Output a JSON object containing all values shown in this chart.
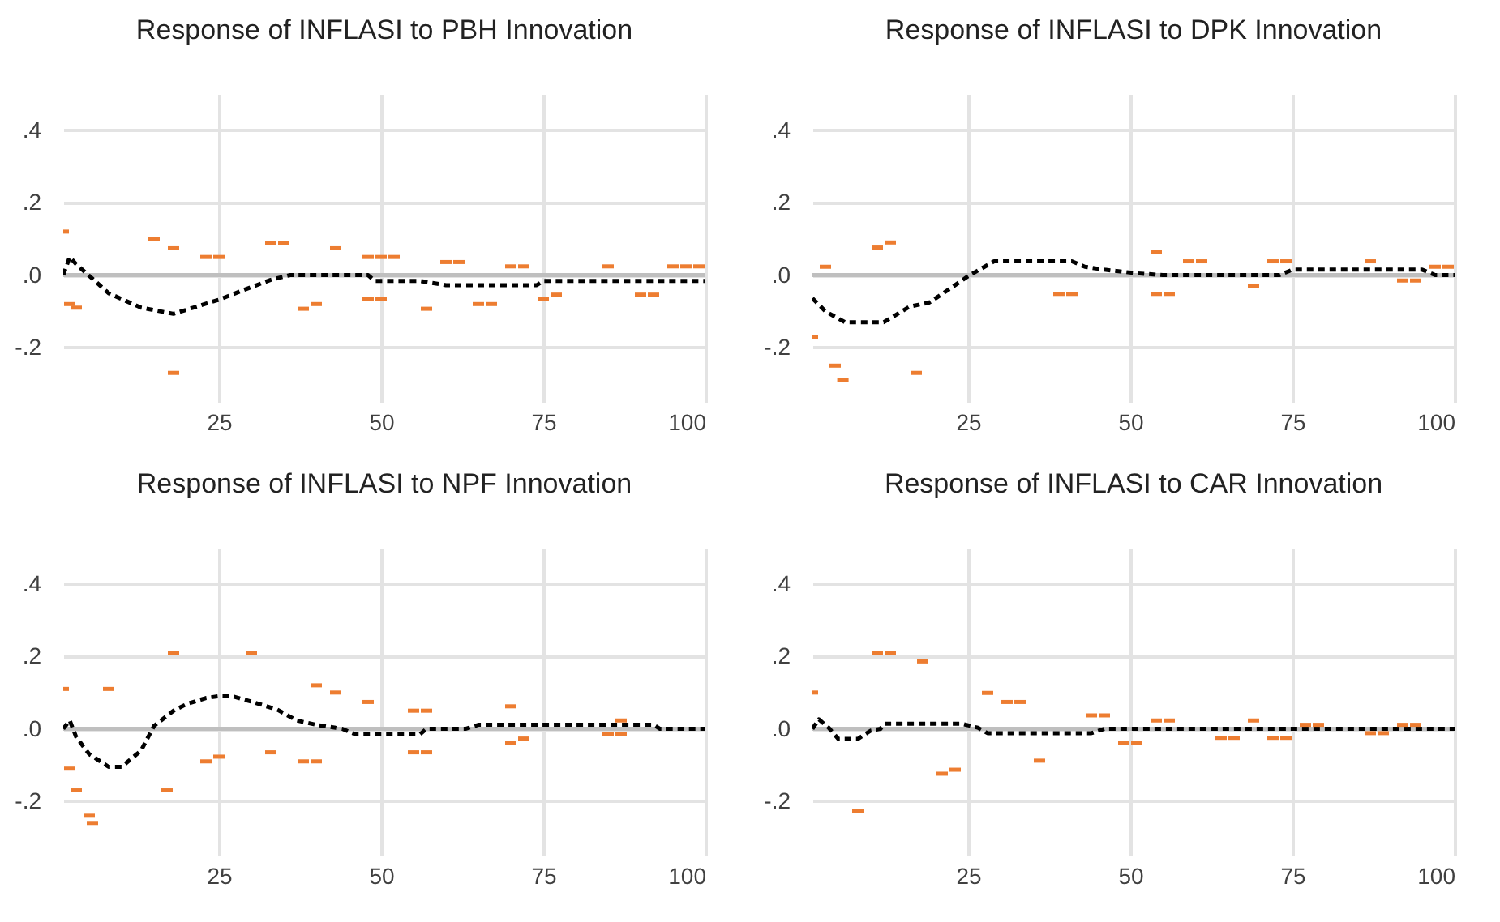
{
  "chart_data": [
    {
      "type": "line",
      "title": "Response of INFLASI to PBH Innovation",
      "xlim": [
        1,
        100
      ],
      "xticks": [
        25,
        50,
        75,
        100
      ],
      "ylim": [
        -0.35,
        0.5
      ],
      "yticks": [
        {
          "value": -0.2,
          "label": "-.2"
        },
        {
          "value": 0,
          "label": ".0"
        },
        {
          "value": 0.2,
          "label": ".2"
        },
        {
          "value": 0.4,
          "label": ".4"
        }
      ],
      "grid": true,
      "line_style": "dashed",
      "ref_lines": [
        {
          "axis": "y",
          "value": 0,
          "color": "#bfbfbf"
        }
      ],
      "series": [
        {
          "type": "line",
          "color": "#000000",
          "x": [
            1,
            2,
            3,
            8,
            13,
            18,
            21,
            25,
            29,
            33,
            36,
            40,
            45,
            48,
            49,
            56,
            60,
            65,
            70,
            74,
            75,
            80,
            90,
            100
          ],
          "values": [
            0,
            0.05,
            0.03,
            -0.05,
            -0.09,
            -0.107,
            -0.09,
            -0.068,
            -0.04,
            -0.013,
            0,
            0,
            0,
            0,
            -0.016,
            -0.016,
            -0.028,
            -0.028,
            -0.028,
            -0.028,
            -0.016,
            -0.016,
            -0.016,
            -0.016
          ]
        },
        {
          "type": "scatter",
          "color": "#ed7d31",
          "x": [
            1,
            2,
            3,
            15,
            18,
            18,
            23,
            25,
            33,
            35,
            38,
            40,
            43,
            48,
            50,
            52,
            48,
            50,
            57,
            60,
            62,
            65,
            67,
            70,
            72,
            75,
            77,
            85,
            90,
            92,
            95,
            97,
            99
          ],
          "values": [
            0.12,
            -0.08,
            -0.09,
            0.1,
            0.074,
            -0.27,
            0.05,
            0.05,
            0.088,
            0.088,
            -0.093,
            -0.08,
            0.074,
            0.05,
            0.05,
            0.05,
            -0.066,
            -0.066,
            -0.093,
            0.036,
            0.036,
            -0.08,
            -0.08,
            0.024,
            0.024,
            -0.066,
            -0.054,
            0.024,
            -0.054,
            -0.054,
            0.024,
            0.024,
            0.024
          ]
        }
      ]
    },
    {
      "type": "line",
      "title": "Response of INFLASI to DPK Innovation",
      "xlim": [
        1,
        100
      ],
      "xticks": [
        25,
        50,
        75,
        100
      ],
      "ylim": [
        -0.35,
        0.5
      ],
      "yticks": [
        {
          "value": -0.2,
          "label": "-.2"
        },
        {
          "value": 0,
          "label": ".0"
        },
        {
          "value": 0.2,
          "label": ".2"
        },
        {
          "value": 0.4,
          "label": ".4"
        }
      ],
      "grid": true,
      "line_style": "dashed",
      "ref_lines": [
        {
          "axis": "y",
          "value": 0,
          "color": "#bfbfbf"
        }
      ],
      "series": [
        {
          "type": "line",
          "color": "#000000",
          "x": [
            1,
            3,
            6,
            9,
            12,
            16,
            19,
            22,
            25,
            29,
            35,
            41,
            43,
            46,
            51,
            55,
            65,
            73,
            75,
            85,
            95,
            97,
            100
          ],
          "values": [
            -0.064,
            -0.1,
            -0.13,
            -0.13,
            -0.13,
            -0.087,
            -0.076,
            -0.04,
            -0.003,
            0.038,
            0.038,
            0.038,
            0.023,
            0.015,
            0.005,
            0,
            0,
            0,
            0.015,
            0.015,
            0.015,
            0,
            0
          ]
        },
        {
          "type": "scatter",
          "color": "#ed7d31",
          "x": [
            1,
            3,
            4.5,
            5.7,
            11,
            13,
            17,
            39,
            41,
            54,
            54,
            56,
            59,
            61,
            69,
            72,
            74,
            87,
            92,
            94,
            97,
            99
          ],
          "values": [
            -0.17,
            0.023,
            -0.25,
            -0.29,
            0.076,
            0.09,
            -0.27,
            -0.052,
            -0.052,
            0.063,
            -0.052,
            -0.052,
            0.038,
            0.038,
            -0.029,
            0.038,
            0.038,
            0.038,
            -0.015,
            -0.015,
            0.023,
            0.023
          ]
        }
      ]
    },
    {
      "type": "line",
      "title": "Response of INFLASI to NPF Innovation",
      "xlim": [
        1,
        100
      ],
      "xticks": [
        25,
        50,
        75,
        100
      ],
      "ylim": [
        -0.35,
        0.5
      ],
      "yticks": [
        {
          "value": -0.2,
          "label": "-.2"
        },
        {
          "value": 0,
          "label": ".0"
        },
        {
          "value": 0.2,
          "label": ".2"
        },
        {
          "value": 0.4,
          "label": ".4"
        }
      ],
      "grid": true,
      "line_style": "dashed",
      "ref_lines": [
        {
          "axis": "y",
          "value": 0,
          "color": "#bfbfbf"
        }
      ],
      "series": [
        {
          "type": "line",
          "color": "#000000",
          "x": [
            1,
            2,
            3,
            5,
            8,
            10,
            13,
            15,
            18,
            20,
            23,
            25,
            27,
            30,
            34,
            37,
            40,
            44,
            46,
            52,
            56,
            57,
            63,
            65,
            75,
            85,
            92,
            93,
            100
          ],
          "values": [
            0,
            0.023,
            -0.023,
            -0.07,
            -0.105,
            -0.105,
            -0.06,
            0.008,
            0.05,
            0.068,
            0.085,
            0.09,
            0.09,
            0.075,
            0.053,
            0.023,
            0.011,
            0,
            -0.015,
            -0.015,
            -0.015,
            0,
            0,
            0.011,
            0.011,
            0.011,
            0.011,
            0,
            0
          ]
        },
        {
          "type": "scatter",
          "color": "#ed7d31",
          "x": [
            1,
            2,
            3,
            5,
            5.5,
            8,
            17,
            18,
            23,
            25,
            30,
            33,
            38,
            40,
            40,
            43,
            48,
            55,
            57,
            55,
            57,
            70,
            70,
            72,
            85,
            87,
            87
          ],
          "values": [
            0.11,
            -0.11,
            -0.17,
            -0.24,
            -0.26,
            0.11,
            -0.17,
            0.21,
            -0.09,
            -0.077,
            0.21,
            -0.065,
            -0.09,
            -0.09,
            0.12,
            0.1,
            0.074,
            0.05,
            0.05,
            -0.065,
            -0.065,
            0.062,
            -0.04,
            -0.027,
            -0.015,
            -0.015,
            0.023
          ]
        }
      ]
    },
    {
      "type": "line",
      "title": "Response of INFLASI to CAR Innovation",
      "xlim": [
        1,
        100
      ],
      "xticks": [
        25,
        50,
        75,
        100
      ],
      "ylim": [
        -0.35,
        0.5
      ],
      "yticks": [
        {
          "value": -0.2,
          "label": "-.2"
        },
        {
          "value": 0,
          "label": ".0"
        },
        {
          "value": 0.2,
          "label": ".2"
        },
        {
          "value": 0.4,
          "label": ".4"
        }
      ],
      "grid": true,
      "line_style": "dashed",
      "ref_lines": [
        {
          "axis": "y",
          "value": 0,
          "color": "#bfbfbf"
        }
      ],
      "series": [
        {
          "type": "line",
          "color": "#000000",
          "x": [
            1,
            2,
            3.5,
            5,
            8,
            10,
            11.5,
            12,
            18,
            24,
            26.5,
            28,
            35,
            44,
            46,
            60,
            80,
            100
          ],
          "values": [
            0,
            0.026,
            0.003,
            -0.028,
            -0.028,
            -0.005,
            0,
            0.014,
            0.014,
            0.014,
            0.003,
            -0.012,
            -0.012,
            -0.012,
            0,
            0,
            0,
            0
          ]
        },
        {
          "type": "scatter",
          "color": "#ed7d31",
          "x": [
            1,
            8,
            11,
            13,
            18,
            21,
            23,
            28,
            31,
            33,
            36,
            44,
            46,
            49,
            51,
            54,
            56,
            64,
            66,
            69,
            72,
            74,
            77,
            79,
            87,
            89,
            92,
            94
          ],
          "values": [
            0.1,
            -0.226,
            0.21,
            0.21,
            0.186,
            -0.124,
            -0.113,
            0.099,
            0.074,
            0.074,
            -0.088,
            0.037,
            0.037,
            -0.039,
            -0.039,
            0.023,
            0.023,
            -0.025,
            -0.025,
            0.023,
            -0.025,
            -0.025,
            0.011,
            0.011,
            -0.012,
            -0.012,
            0.011,
            0.011
          ]
        }
      ]
    }
  ]
}
